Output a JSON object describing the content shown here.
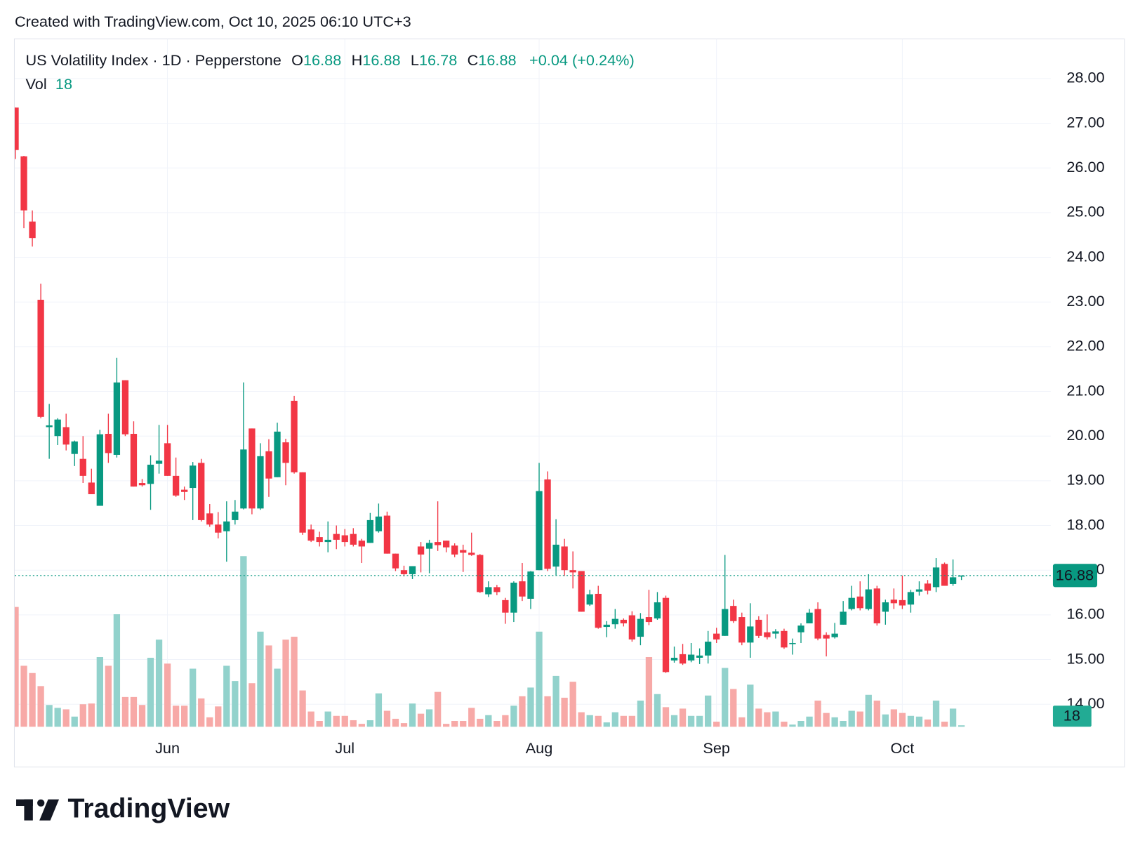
{
  "chart_data": {
    "type": "candlestick",
    "credit": "Created with TradingView.com, Oct 10, 2025 06:10 UTC+3",
    "title": "US Volatility Index · 1D · Pepperstone",
    "ohlc_labels": [
      "O",
      "H",
      "L",
      "C"
    ],
    "change": "+0.04 (+0.24%)",
    "volume_label": "Vol",
    "brand": "TradingView",
    "up_color": "#089981",
    "down_color": "#f23645",
    "volume_up_color": "#92d2cc",
    "volume_down_color": "#f7a9a7",
    "grid": true,
    "ylim": [
      13.48,
      28.88
    ],
    "yticks": [
      {
        "value": 14,
        "label": "14.00"
      },
      {
        "value": 15,
        "label": "15.00"
      },
      {
        "value": 16,
        "label": "16.00"
      },
      {
        "value": 17,
        "label": "17.00"
      },
      {
        "value": 18,
        "label": "18.00"
      },
      {
        "value": 19,
        "label": "19.00"
      },
      {
        "value": 20,
        "label": "20.00"
      },
      {
        "value": 21,
        "label": "21.00"
      },
      {
        "value": 22,
        "label": "22.00"
      },
      {
        "value": 23,
        "label": "23.00"
      },
      {
        "value": 24,
        "label": "24.00"
      },
      {
        "value": 25,
        "label": "25.00"
      },
      {
        "value": 26,
        "label": "26.00"
      },
      {
        "value": 27,
        "label": "27.00"
      },
      {
        "value": 28,
        "label": "28.00"
      }
    ],
    "volume_lim": [
      0,
      2700
    ],
    "categories": [
      null,
      null,
      null,
      null,
      null,
      null,
      null,
      null,
      null,
      null,
      null,
      null,
      null,
      null,
      null,
      null,
      null,
      null,
      "Jun",
      null,
      null,
      null,
      null,
      null,
      null,
      null,
      null,
      null,
      null,
      null,
      null,
      null,
      null,
      null,
      null,
      null,
      null,
      null,
      null,
      "Jul",
      null,
      null,
      null,
      null,
      null,
      null,
      null,
      null,
      null,
      null,
      null,
      null,
      null,
      null,
      null,
      null,
      null,
      null,
      null,
      null,
      null,
      null,
      "Aug",
      null,
      null,
      null,
      null,
      null,
      null,
      null,
      null,
      null,
      null,
      null,
      null,
      null,
      null,
      null,
      null,
      null,
      null,
      null,
      null,
      "Sep",
      null,
      null,
      null,
      null,
      null,
      null,
      null,
      null,
      null,
      null,
      null,
      null,
      null,
      null,
      null,
      null,
      null,
      null,
      null,
      null,
      null,
      "Oct",
      null,
      null,
      null,
      null,
      null,
      null,
      null
    ],
    "open": [
      27.35,
      26.26,
      24.8,
      23.05,
      20.2,
      20.0,
      20.2,
      19.6,
      19.49,
      18.96,
      18.44,
      20.05,
      19.58,
      21.25,
      20.05,
      18.95,
      18.93,
      19.38,
      19.84,
      19.11,
      18.8,
      18.84,
      19.4,
      18.27,
      18.02,
      17.87,
      18.12,
      18.38,
      20.17,
      18.38,
      19.66,
      19.08,
      19.86,
      20.79,
      19.19,
      17.91,
      17.74,
      17.63,
      17.81,
      17.78,
      17.81,
      17.66,
      17.61,
      17.87,
      18.22,
      17.37,
      17.0,
      16.91,
      17.53,
      17.48,
      17.63,
      17.66,
      17.55,
      17.45,
      17.39,
      17.34,
      16.46,
      16.62,
      16.33,
      16.05,
      16.75,
      16.36,
      17.0,
      19.03,
      17.08,
      17.53,
      17.0,
      16.98,
      16.23,
      16.47,
      15.73,
      15.79,
      15.89,
      15.99,
      15.51,
      15.95,
      15.92,
      16.38,
      14.98,
      15.12,
      14.98,
      15.04,
      15.09,
      15.58,
      15.53,
      16.2,
      15.95,
      15.38,
      15.89,
      15.61,
      15.58,
      15.64,
      15.35,
      15.61,
      15.81,
      16.13,
      15.55,
      15.5,
      15.78,
      16.13,
      16.41,
      16.13,
      16.59,
      16.07,
      16.34,
      16.33,
      16.23,
      16.52,
      16.7,
      16.62,
      17.14,
      16.69,
      16.88
    ],
    "high": [
      27.35,
      26.27,
      25.05,
      23.41,
      20.72,
      20.4,
      20.5,
      19.9,
      20.0,
      19.27,
      20.14,
      20.5,
      21.75,
      21.25,
      20.33,
      19.04,
      19.57,
      20.25,
      20.25,
      19.52,
      18.87,
      19.42,
      19.49,
      18.48,
      18.3,
      18.54,
      18.57,
      21.2,
      20.17,
      19.84,
      19.93,
      20.3,
      19.94,
      20.9,
      19.19,
      18.02,
      17.86,
      18.09,
      18.0,
      17.92,
      17.94,
      17.7,
      18.28,
      18.49,
      18.31,
      17.37,
      17.1,
      17.09,
      17.63,
      17.68,
      18.54,
      17.66,
      17.6,
      17.57,
      17.84,
      17.36,
      16.75,
      16.67,
      16.38,
      16.75,
      17.16,
      16.98,
      19.4,
      19.21,
      18.14,
      17.7,
      17.42,
      16.98,
      16.56,
      16.65,
      15.86,
      16.13,
      15.92,
      16.08,
      16.04,
      16.56,
      16.51,
      16.43,
      15.29,
      15.35,
      15.37,
      15.25,
      15.64,
      15.71,
      17.34,
      16.34,
      16.05,
      16.26,
      15.97,
      16.01,
      15.68,
      15.69,
      15.47,
      15.81,
      16.13,
      16.28,
      15.61,
      15.82,
      16.31,
      16.65,
      16.75,
      16.91,
      16.65,
      16.34,
      16.59,
      16.88,
      16.56,
      16.75,
      16.78,
      17.27,
      17.17,
      17.24,
      16.88
    ],
    "low": [
      26.2,
      24.65,
      24.24,
      20.4,
      19.49,
      19.8,
      19.68,
      19.33,
      18.95,
      18.7,
      18.44,
      19.4,
      19.52,
      20.0,
      18.87,
      18.87,
      18.35,
      19.16,
      19.11,
      18.64,
      18.57,
      18.12,
      18.09,
      17.97,
      17.71,
      17.19,
      18.02,
      18.36,
      18.25,
      18.35,
      18.64,
      19.08,
      18.9,
      19.16,
      17.79,
      17.63,
      17.53,
      17.4,
      17.47,
      17.53,
      17.53,
      17.16,
      17.61,
      17.84,
      17.37,
      16.98,
      16.86,
      16.8,
      16.95,
      16.93,
      17.43,
      17.4,
      17.29,
      16.96,
      17.32,
      16.49,
      16.4,
      16.44,
      15.8,
      15.84,
      16.31,
      16.13,
      17.0,
      16.98,
      16.87,
      16.87,
      16.59,
      16.07,
      16.2,
      15.69,
      15.5,
      15.69,
      15.74,
      15.4,
      15.32,
      15.77,
      15.89,
      14.7,
      14.93,
      14.88,
      14.94,
      14.9,
      14.91,
      15.37,
      15.53,
      15.82,
      15.32,
      15.04,
      15.48,
      15.45,
      15.47,
      15.24,
      15.11,
      15.37,
      15.81,
      15.43,
      15.07,
      15.47,
      15.78,
      16.1,
      16.1,
      16.1,
      15.76,
      15.78,
      16.13,
      16.13,
      16.05,
      16.43,
      16.46,
      16.51,
      16.65,
      16.65,
      16.78
    ],
    "close": [
      26.4,
      25.05,
      24.43,
      20.43,
      20.24,
      20.37,
      19.81,
      19.88,
      19.11,
      18.7,
      20.04,
      19.62,
      21.2,
      20.04,
      18.87,
      18.9,
      19.36,
      19.45,
      19.11,
      18.67,
      18.75,
      19.34,
      18.12,
      18.02,
      17.84,
      18.09,
      18.31,
      19.7,
      18.38,
      19.55,
      19.05,
      20.1,
      19.4,
      19.19,
      17.84,
      17.66,
      17.63,
      17.68,
      17.68,
      17.63,
      17.57,
      17.53,
      18.12,
      18.2,
      17.37,
      17.04,
      16.91,
      17.09,
      17.35,
      17.61,
      17.56,
      17.51,
      17.35,
      17.39,
      17.34,
      16.51,
      16.62,
      16.51,
      16.05,
      16.72,
      16.41,
      16.97,
      18.77,
      17.03,
      17.57,
      17.0,
      16.95,
      16.07,
      16.46,
      15.71,
      15.78,
      15.91,
      15.81,
      15.45,
      15.91,
      15.84,
      16.28,
      14.72,
      15.04,
      14.91,
      15.11,
      15.09,
      15.4,
      15.45,
      16.13,
      15.86,
      15.38,
      15.74,
      15.53,
      15.5,
      15.63,
      15.27,
      15.37,
      15.76,
      16.05,
      15.47,
      15.47,
      15.58,
      16.07,
      16.38,
      16.15,
      16.57,
      15.81,
      16.28,
      16.26,
      16.21,
      16.51,
      16.57,
      16.54,
      17.06,
      16.65,
      16.84,
      16.88
    ],
    "volume": [
      1485,
      756,
      666,
      504,
      270,
      234,
      216,
      126,
      279,
      288,
      864,
      756,
      1395,
      369,
      369,
      270,
      855,
      1080,
      783,
      261,
      261,
      720,
      351,
      117,
      252,
      756,
      567,
      2115,
      540,
      1179,
      1008,
      720,
      1080,
      1116,
      450,
      189,
      72,
      189,
      135,
      135,
      81,
      36,
      81,
      414,
      198,
      99,
      45,
      288,
      162,
      216,
      432,
      36,
      72,
      72,
      234,
      99,
      144,
      72,
      144,
      261,
      378,
      486,
      1179,
      378,
      630,
      360,
      558,
      180,
      144,
      135,
      54,
      180,
      135,
      135,
      324,
      864,
      405,
      243,
      144,
      225,
      135,
      135,
      387,
      63,
      729,
      468,
      117,
      522,
      225,
      180,
      189,
      63,
      27,
      72,
      126,
      324,
      171,
      117,
      72,
      198,
      189,
      396,
      324,
      153,
      216,
      171,
      135,
      126,
      90,
      324,
      63,
      225,
      18
    ]
  }
}
